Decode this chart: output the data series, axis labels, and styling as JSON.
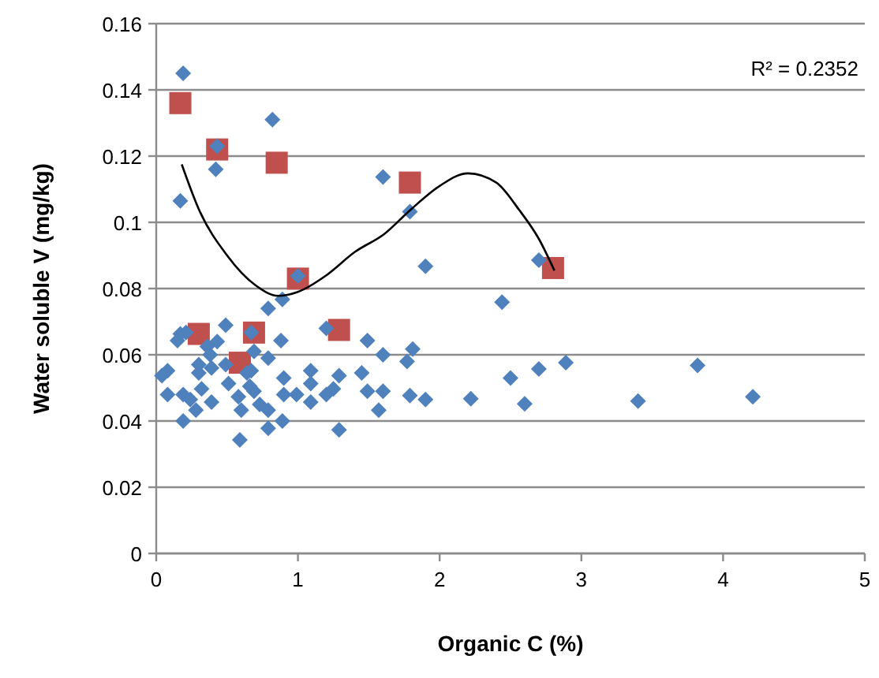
{
  "chart_data": {
    "type": "scatter",
    "xlabel": "Organic C (%)",
    "ylabel": "Water soluble V (mg/kg)",
    "xlim": [
      0,
      5
    ],
    "xticks": [
      0,
      1,
      2,
      3,
      4,
      5
    ],
    "ylim": [
      0,
      0.16
    ],
    "yticks": [
      0,
      0.02,
      0.04,
      0.06,
      0.08,
      0.1,
      0.12,
      0.14,
      0.16
    ],
    "grid": "y",
    "annotations": [
      "R² = 0.2352"
    ],
    "series": [
      {
        "marker": "square",
        "color": "#c0504d",
        "x": [
          0.17,
          0.43,
          0.85,
          1.79,
          1.0,
          2.8,
          0.3,
          0.69,
          1.29,
          0.59
        ],
        "values": [
          0.136,
          0.122,
          0.118,
          0.112,
          0.083,
          0.0862,
          0.0663,
          0.0667,
          0.0675,
          0.0576
        ]
      },
      {
        "marker": "diamond",
        "color": "#4f81bd",
        "x": [
          0.19,
          0.82,
          0.43,
          0.42,
          0.17,
          1.6,
          1.79,
          1.9,
          1.0,
          0.89,
          0.79,
          2.44,
          2.7,
          2.5,
          2.7,
          2.89,
          2.6,
          3.4,
          3.82,
          4.21,
          2.22,
          1.49,
          1.6,
          1.81,
          1.77,
          1.45,
          1.49,
          1.6,
          1.57,
          1.79,
          1.9,
          1.29,
          1.2,
          0.88,
          0.79,
          0.49,
          0.17,
          0.15,
          0.21,
          0.67,
          0.69,
          0.36,
          0.43,
          0.08,
          0.04,
          0.3,
          0.39,
          0.64,
          0.9,
          1.09,
          1.29,
          0.08,
          0.19,
          0.32,
          0.39,
          0.28,
          0.19,
          0.51,
          0.58,
          0.6,
          0.59,
          0.69,
          0.73,
          0.79,
          0.79,
          0.89,
          0.9,
          0.99,
          1.09,
          1.2,
          1.25,
          1.09,
          0.67,
          0.49,
          0.38,
          0.3,
          0.66,
          0.24
        ],
        "values": [
          0.145,
          0.131,
          0.123,
          0.116,
          0.1065,
          0.1137,
          0.1032,
          0.0867,
          0.0838,
          0.0767,
          0.074,
          0.0759,
          0.0886,
          0.053,
          0.0557,
          0.0576,
          0.0452,
          0.046,
          0.0568,
          0.0473,
          0.0467,
          0.0643,
          0.06,
          0.0617,
          0.058,
          0.0545,
          0.049,
          0.049,
          0.0433,
          0.0477,
          0.0465,
          0.0373,
          0.068,
          0.0643,
          0.059,
          0.0689,
          0.0663,
          0.0643,
          0.0667,
          0.0667,
          0.061,
          0.0625,
          0.064,
          0.0552,
          0.0537,
          0.0545,
          0.056,
          0.0545,
          0.053,
          0.0552,
          0.0537,
          0.048,
          0.048,
          0.0497,
          0.0457,
          0.0433,
          0.04,
          0.0513,
          0.0473,
          0.0433,
          0.0343,
          0.049,
          0.045,
          0.0433,
          0.0378,
          0.04,
          0.048,
          0.048,
          0.0457,
          0.048,
          0.0497,
          0.0513,
          0.0552,
          0.057,
          0.06,
          0.057,
          0.0505,
          0.0465
        ]
      },
      {
        "type": "line",
        "marker": "none",
        "color": "#000000",
        "x": [
          0.18,
          0.3,
          0.5,
          0.7,
          0.86,
          1.0,
          1.2,
          1.4,
          1.61,
          1.8,
          2.0,
          2.2,
          2.4,
          2.56,
          2.7,
          2.81
        ],
        "values": [
          0.1175,
          0.104,
          0.09,
          0.081,
          0.0778,
          0.079,
          0.084,
          0.091,
          0.0965,
          0.104,
          0.111,
          0.1148,
          0.112,
          0.1038,
          0.095,
          0.0854
        ]
      }
    ]
  }
}
